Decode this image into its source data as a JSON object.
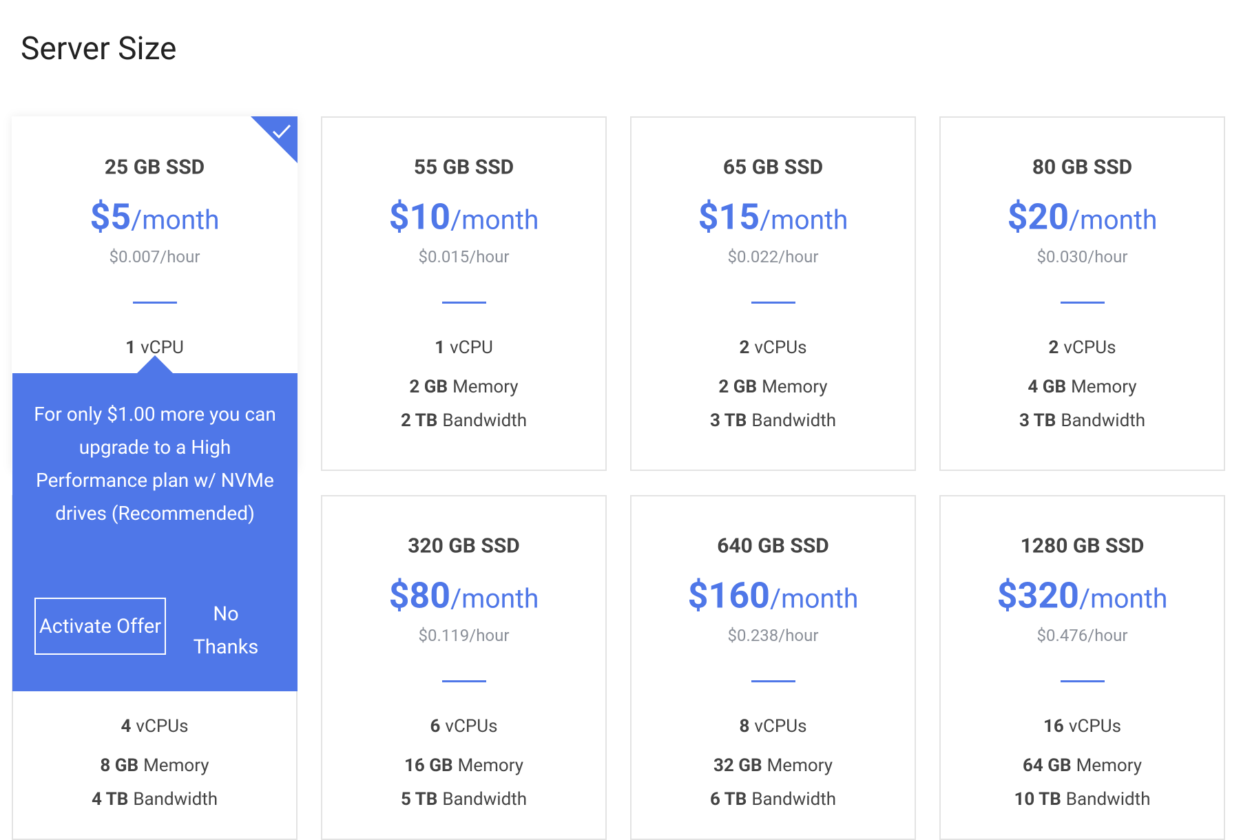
{
  "header": {
    "title": "Server Size"
  },
  "plans": [
    {
      "storage": "25 GB SSD",
      "price": "$5",
      "period": "/month",
      "hourly": "$0.007/hour",
      "specs": [
        {
          "amount": "1",
          "unit": "vCPU"
        }
      ]
    },
    {
      "storage": "55 GB SSD",
      "price": "$10",
      "period": "/month",
      "hourly": "$0.015/hour",
      "specs": [
        {
          "amount": "1",
          "unit": "vCPU"
        },
        {
          "amount": "2 GB",
          "unit": "Memory"
        },
        {
          "amount": "2 TB",
          "unit": "Bandwidth"
        }
      ]
    },
    {
      "storage": "65 GB SSD",
      "price": "$15",
      "period": "/month",
      "hourly": "$0.022/hour",
      "specs": [
        {
          "amount": "2",
          "unit": "vCPUs"
        },
        {
          "amount": "2 GB",
          "unit": "Memory"
        },
        {
          "amount": "3 TB",
          "unit": "Bandwidth"
        }
      ]
    },
    {
      "storage": "80 GB SSD",
      "price": "$20",
      "period": "/month",
      "hourly": "$0.030/hour",
      "specs": [
        {
          "amount": "2",
          "unit": "vCPUs"
        },
        {
          "amount": "4 GB",
          "unit": "Memory"
        },
        {
          "amount": "3 TB",
          "unit": "Bandwidth"
        }
      ]
    },
    {
      "specs": [
        {
          "amount": "4",
          "unit": "vCPUs"
        },
        {
          "amount": "8 GB",
          "unit": "Memory"
        },
        {
          "amount": "4 TB",
          "unit": "Bandwidth"
        }
      ]
    },
    {
      "storage": "320 GB SSD",
      "price": "$80",
      "period": "/month",
      "hourly": "$0.119/hour",
      "specs": [
        {
          "amount": "6",
          "unit": "vCPUs"
        },
        {
          "amount": "16 GB",
          "unit": "Memory"
        },
        {
          "amount": "5 TB",
          "unit": "Bandwidth"
        }
      ]
    },
    {
      "storage": "640 GB SSD",
      "price": "$160",
      "period": "/month",
      "hourly": "$0.238/hour",
      "specs": [
        {
          "amount": "8",
          "unit": "vCPUs"
        },
        {
          "amount": "32 GB",
          "unit": "Memory"
        },
        {
          "amount": "6 TB",
          "unit": "Bandwidth"
        }
      ]
    },
    {
      "storage": "1280 GB SSD",
      "price": "$320",
      "period": "/month",
      "hourly": "$0.476/hour",
      "specs": [
        {
          "amount": "16",
          "unit": "vCPUs"
        },
        {
          "amount": "64 GB",
          "unit": "Memory"
        },
        {
          "amount": "10 TB",
          "unit": "Bandwidth"
        }
      ]
    }
  ],
  "offer": {
    "text": "For only $1.00 more you can upgrade to a High Performance plan w/ NVMe drives (Recommended)",
    "activate": "Activate Offer",
    "decline": "No Thanks"
  }
}
